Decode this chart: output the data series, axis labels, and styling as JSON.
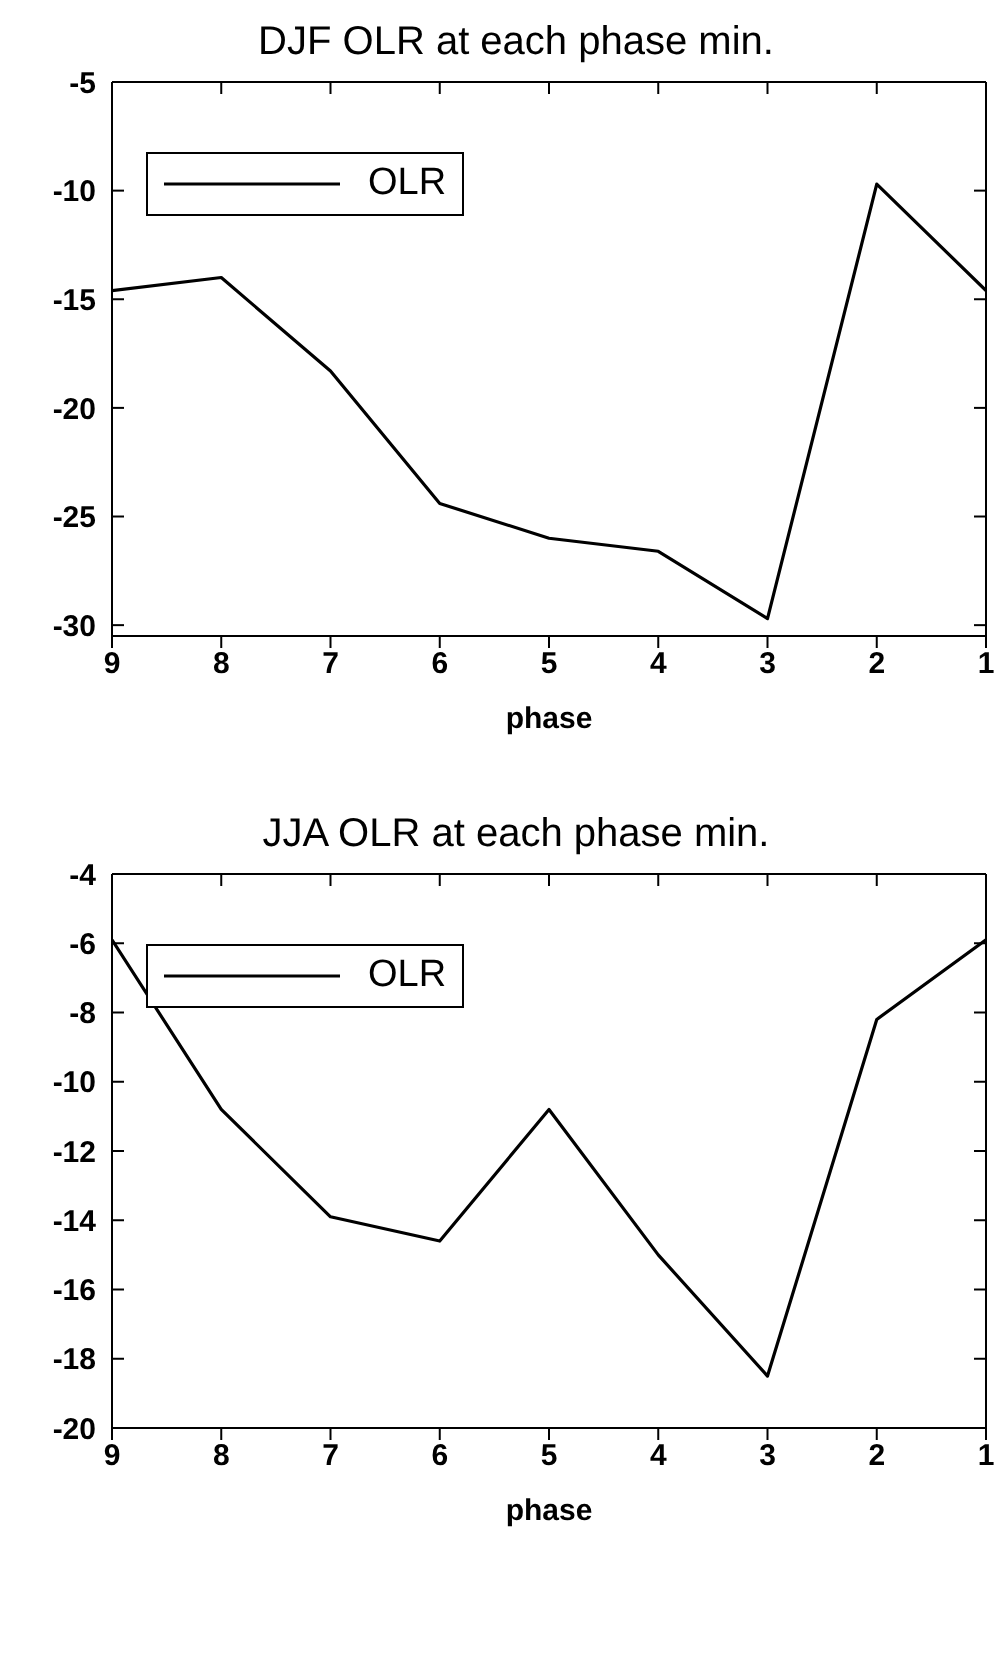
{
  "chart_data": [
    {
      "type": "line",
      "title": "DJF OLR at each phase min.",
      "xlabel": "phase",
      "x": [
        9,
        8,
        7,
        6,
        5,
        4,
        3,
        2,
        1
      ],
      "series": [
        {
          "name": "OLR",
          "color": "#000000",
          "values": [
            -14.6,
            -14.0,
            -18.3,
            -24.4,
            -26.0,
            -26.6,
            -29.7,
            -9.7,
            -14.6
          ]
        }
      ],
      "xlim": [
        9,
        1
      ],
      "xticks": [
        9,
        8,
        7,
        6,
        5,
        4,
        3,
        2,
        1
      ],
      "ylim": [
        -30.5,
        -5
      ],
      "yticks": [
        -30,
        -25,
        -20,
        -15,
        -10,
        -5
      ],
      "legend": "top left",
      "grid": false,
      "marker": "none",
      "line_style": "solid"
    },
    {
      "type": "line",
      "title": "JJA OLR at each phase min.",
      "xlabel": "phase",
      "x": [
        9,
        8,
        7,
        6,
        5,
        4,
        3,
        2,
        1
      ],
      "series": [
        {
          "name": "OLR",
          "color": "#000000",
          "values": [
            -5.9,
            -10.8,
            -13.9,
            -14.6,
            -10.8,
            -15.0,
            -18.5,
            -8.2,
            -5.9
          ]
        }
      ],
      "xlim": [
        9,
        1
      ],
      "xticks": [
        9,
        8,
        7,
        6,
        5,
        4,
        3,
        2,
        1
      ],
      "ylim": [
        -20,
        -4
      ],
      "yticks": [
        -20,
        -18,
        -16,
        -14,
        -12,
        -10,
        -8,
        -6,
        -4
      ],
      "legend": "top left",
      "grid": false,
      "marker": "none",
      "line_style": "solid"
    }
  ]
}
